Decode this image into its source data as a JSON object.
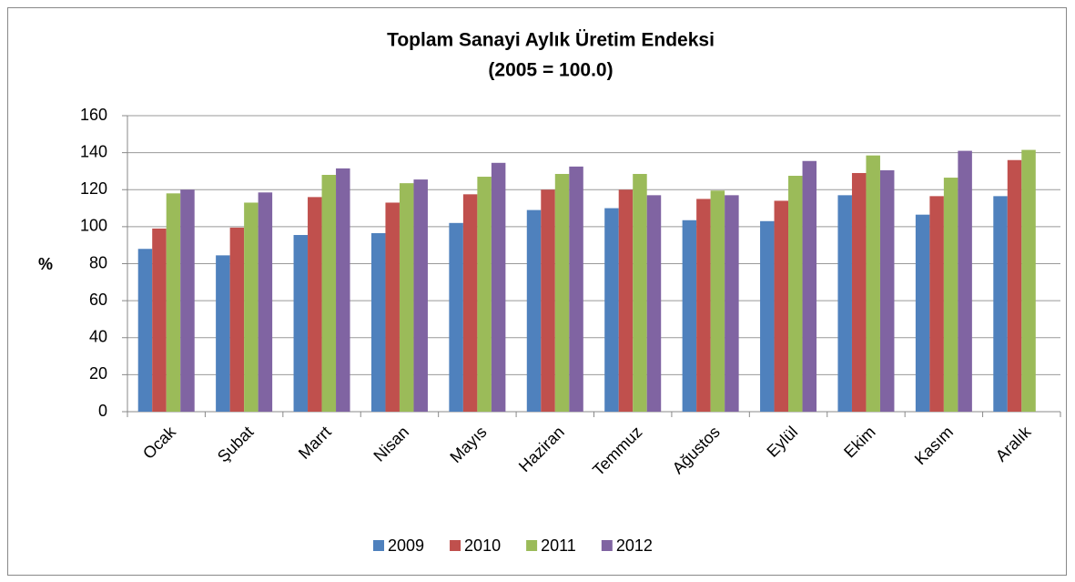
{
  "chart_data": {
    "type": "bar",
    "title": "Toplam Sanayi Aylık Üretim Endeksi",
    "subtitle": "(2005 = 100.0)",
    "y_label": "%",
    "categories": [
      "Ocak",
      "Şubat",
      "Marrt",
      "Nisan",
      "Mayıs",
      "Haziran",
      "Temmuz",
      "Ağustos",
      "Eylül",
      "Ekim",
      "Kasım",
      "Aralık"
    ],
    "series": [
      {
        "name": "2009",
        "color": "#4f81bd",
        "values": [
          88,
          84.5,
          95.5,
          96.5,
          102,
          109,
          110,
          103.5,
          103,
          117,
          106.5,
          116.5
        ]
      },
      {
        "name": "2010",
        "color": "#c0504d",
        "values": [
          99,
          99.5,
          116,
          113,
          117.5,
          120,
          120,
          115,
          114,
          129,
          116.5,
          136
        ]
      },
      {
        "name": "2011",
        "color": "#9bbb59",
        "values": [
          118,
          113,
          128,
          123.5,
          127,
          128.5,
          128.5,
          119.5,
          127.5,
          138.5,
          126.5,
          141.5
        ]
      },
      {
        "name": "2012",
        "color": "#8064a2",
        "values": [
          120,
          118.5,
          131.5,
          125.5,
          134.5,
          132.5,
          117,
          117,
          135.5,
          130.5,
          141,
          null
        ]
      }
    ],
    "ylim": [
      0,
      160
    ],
    "yticks": [
      0,
      20,
      40,
      60,
      80,
      100,
      120,
      140,
      160
    ],
    "grid": true,
    "legend": "bottom"
  }
}
